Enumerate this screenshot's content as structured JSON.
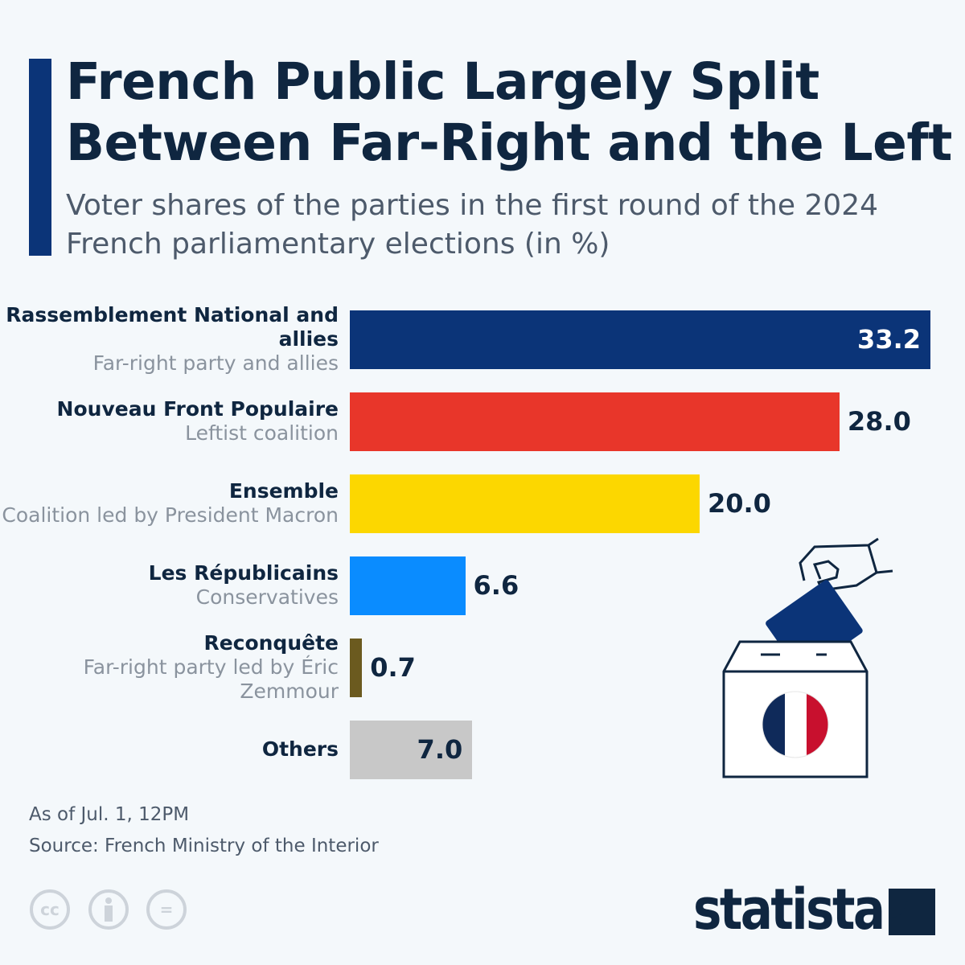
{
  "title": "French Public Largely Split Between Far-Right and the Left",
  "subtitle": "Voter shares of the parties in the first round of the 2024 French parliamentary elections (in %)",
  "chart_data": {
    "type": "bar",
    "orientation": "horizontal",
    "categories": [
      "Rassemblement National and allies",
      "Nouveau Front Populaire",
      "Ensemble",
      "Les Républicains",
      "Reconquête",
      "Others"
    ],
    "descriptions": [
      "Far-right party and allies",
      "Leftist coalition",
      "Coalition led by President Macron",
      "Conservatives",
      "Far-right party led by Éric Zemmour",
      ""
    ],
    "values": [
      33.2,
      28.0,
      20.0,
      6.6,
      0.7,
      7.0
    ],
    "labels": [
      "33.2",
      "28.0",
      "20.0",
      "6.6",
      "0.7",
      "7.0"
    ],
    "colors": [
      "#0b3478",
      "#e8362a",
      "#fcd700",
      "#0a8cff",
      "#6b5a1f",
      "#c8c8c8"
    ],
    "grid": false
  },
  "footer": {
    "note": "As of Jul. 1, 12PM",
    "source": "Source: French Ministry of the Interior"
  },
  "license_icons": [
    "cc-icon",
    "attribution-icon",
    "no-derivatives-icon"
  ],
  "license_text": [
    "cc",
    "=",
    ""
  ],
  "brand": "statista",
  "accent_color": "#0b3478"
}
